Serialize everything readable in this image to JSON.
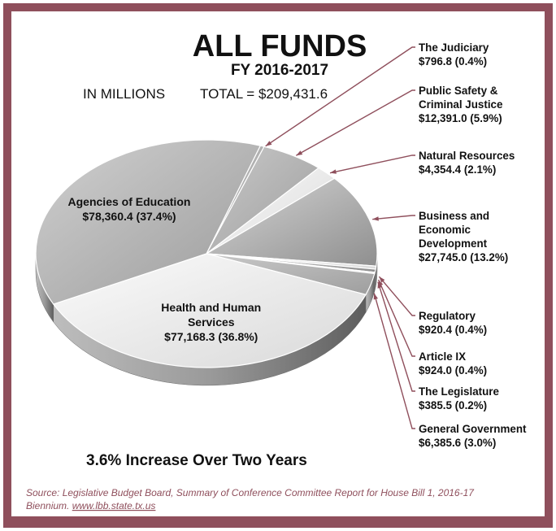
{
  "colors": {
    "frame": "#8f4f5c",
    "leader": "#8f4f5c"
  },
  "chart_data": {
    "type": "pie",
    "title": "ALL FUNDS",
    "subtitle": "FY 2016-2017",
    "units_label": "IN MILLIONS",
    "total_label": "TOTAL = $209,431.6",
    "total": 209431.6,
    "footer": "3.6% Increase Over Two Years",
    "source_text": "Source: Legislative Budget Board, Summary of Conference Committee Report for House Bill 1, 2016-17",
    "source_text2": "Biennium.",
    "source_link": "www.lbb.state.tx.us",
    "slices": [
      {
        "name": [
          "The Judiciary"
        ],
        "value_label": "$796.8 (0.4%)",
        "value": 796.8,
        "percent": 0.4
      },
      {
        "name": [
          "Public Safety &",
          "Criminal Justice"
        ],
        "value_label": "$12,391.0 (5.9%)",
        "value": 12391.0,
        "percent": 5.9
      },
      {
        "name": [
          "Natural Resources"
        ],
        "value_label": "$4,354.4 (2.1%)",
        "value": 4354.4,
        "percent": 2.1
      },
      {
        "name": [
          "Business and",
          "Economic",
          "Development"
        ],
        "value_label": "$27,745.0 (13.2%)",
        "value": 27745.0,
        "percent": 13.2
      },
      {
        "name": [
          "Regulatory"
        ],
        "value_label": "$920.4 (0.4%)",
        "value": 920.4,
        "percent": 0.4
      },
      {
        "name": [
          "Article IX"
        ],
        "value_label": "$924.0 (0.4%)",
        "value": 924.0,
        "percent": 0.4
      },
      {
        "name": [
          "The Legislature"
        ],
        "value_label": "$385.5 (0.2%)",
        "value": 385.5,
        "percent": 0.2
      },
      {
        "name": [
          "General Government"
        ],
        "value_label": "$6,385.6 (3.0%)",
        "value": 6385.6,
        "percent": 3.0
      },
      {
        "name": [
          "Health and Human",
          "Services"
        ],
        "value_label": "$77,168.3 (36.8%)",
        "value": 77168.3,
        "percent": 36.8
      },
      {
        "name": [
          "Agencies of Education"
        ],
        "value_label": "$78,360.4 (37.4%)",
        "value": 78360.4,
        "percent": 37.4
      }
    ]
  }
}
